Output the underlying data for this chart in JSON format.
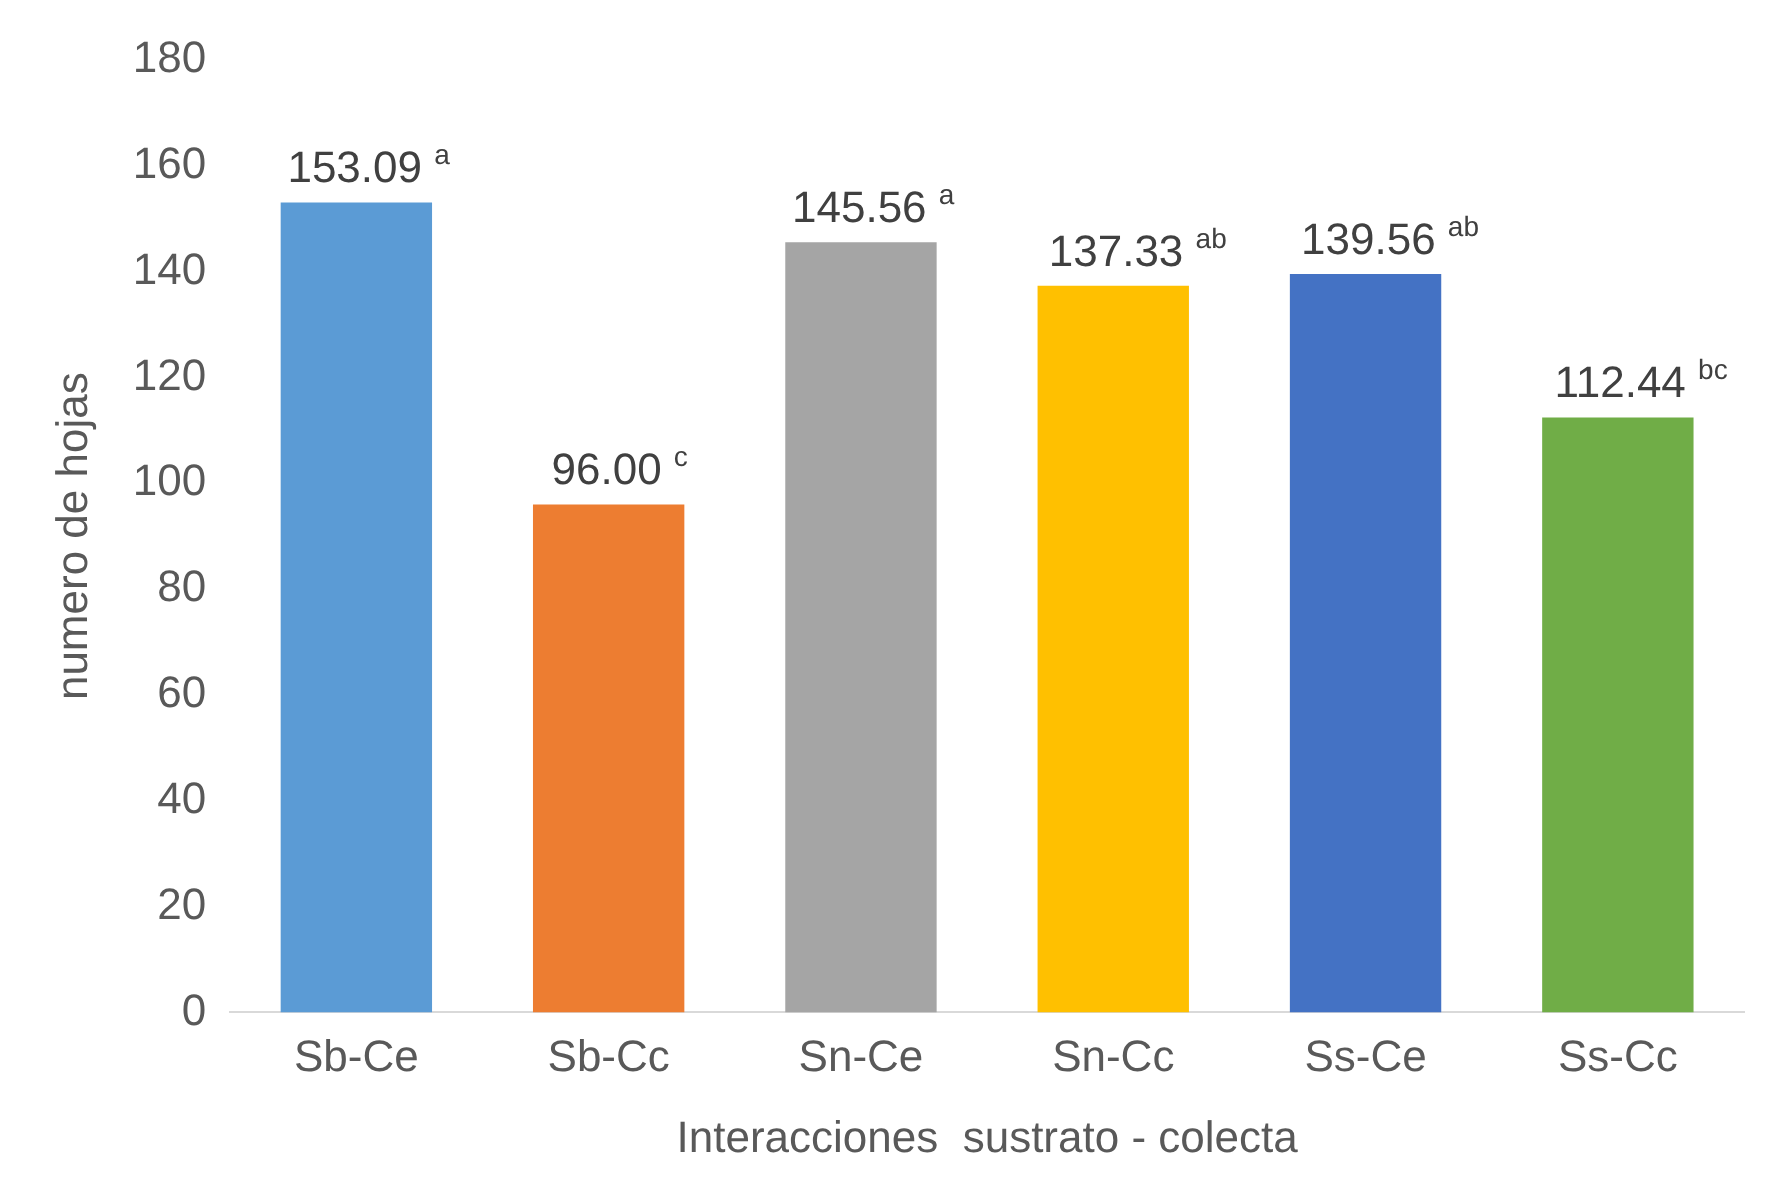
{
  "chart_data": {
    "type": "bar",
    "xlabel": "Interacciones  sustrato - colecta",
    "ylabel": "numero de hojas",
    "categories": [
      "Sb-Ce",
      "Sb-Cc",
      "Sn-Ce",
      "Sn-Cc",
      "Ss-Ce",
      "Ss-Cc"
    ],
    "values": [
      153.09,
      96.0,
      145.56,
      137.33,
      139.56,
      112.44
    ],
    "colors": [
      "#5b9bd5",
      "#ed7d31",
      "#a5a5a5",
      "#ffc000",
      "#4472c4",
      "#70ad47"
    ],
    "value_labels": [
      "153.09 $^{a}$",
      "96.00 $^{c}$",
      "145.56 $^{a}$",
      "137.33 $^{ab}$",
      "139.56 $^{ab}$",
      "112.44 $^{bc}$"
    ],
    "ylim": [
      0,
      180
    ],
    "yticks": [
      0,
      20,
      40,
      60,
      80,
      100,
      120,
      140,
      160,
      180
    ],
    "grid": false,
    "legend": false
  }
}
